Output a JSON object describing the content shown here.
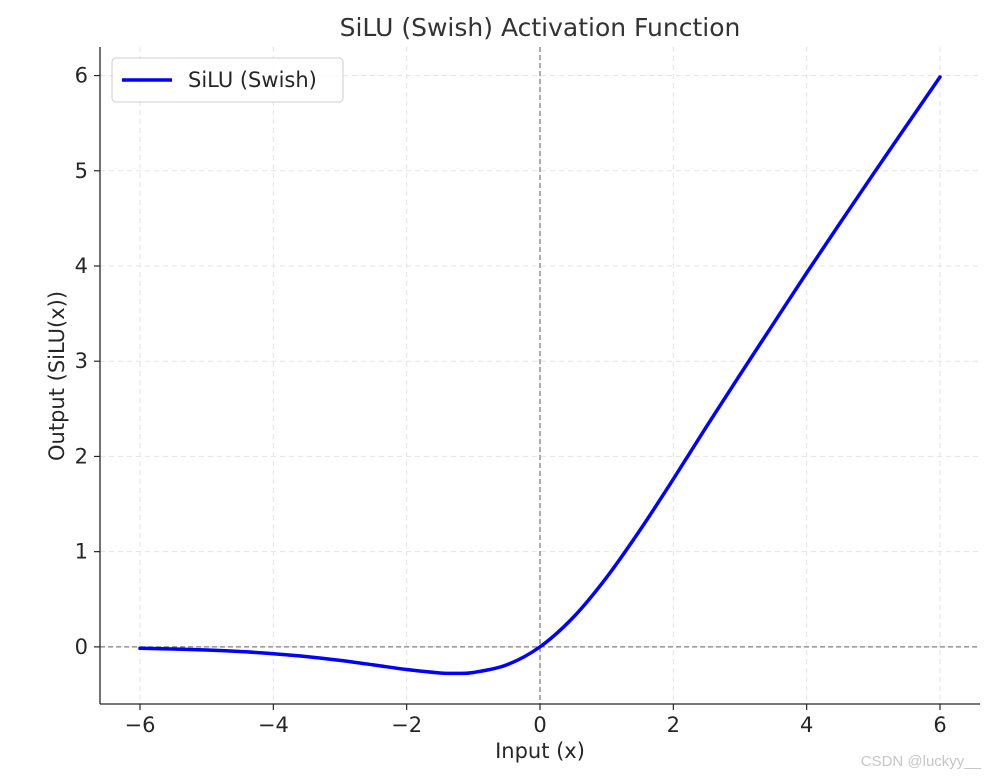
{
  "chart_data": {
    "type": "line",
    "title": "SiLU (Swish) Activation Function",
    "xlabel": "Input (x)",
    "ylabel": "Output (SiLU(x))",
    "xlim": [
      -6.6,
      6.6
    ],
    "ylim": [
      -0.6,
      6.3
    ],
    "xticks": [
      -6,
      -4,
      -2,
      0,
      2,
      4,
      6
    ],
    "xtick_labels": [
      "−6",
      "−4",
      "−2",
      "0",
      "2",
      "4",
      "6"
    ],
    "yticks": [
      0,
      1,
      2,
      3,
      4,
      5,
      6
    ],
    "ytick_labels": [
      "0",
      "1",
      "2",
      "3",
      "4",
      "5",
      "6"
    ],
    "grid": true,
    "reference_lines": {
      "x": 0,
      "y": 0
    },
    "legend_position": "top-left",
    "series": [
      {
        "name": "SiLU (Swish)",
        "color": "#0000ff",
        "x": [
          -6,
          -5.5,
          -5,
          -4.5,
          -4,
          -3.5,
          -3,
          -2.5,
          -2,
          -1.5,
          -1.25,
          -1,
          -0.5,
          0,
          0.5,
          1,
          1.5,
          2,
          2.5,
          3,
          3.5,
          4,
          4.5,
          5,
          5.5,
          6
        ],
        "y": [
          -0.015,
          -0.022,
          -0.033,
          -0.049,
          -0.072,
          -0.102,
          -0.142,
          -0.189,
          -0.238,
          -0.274,
          -0.278,
          -0.269,
          -0.189,
          0,
          0.311,
          0.731,
          1.226,
          1.762,
          2.316,
          2.858,
          3.393,
          3.928,
          4.45,
          4.967,
          5.477,
          5.985
        ]
      }
    ]
  },
  "watermark": "CSDN @luckyy__"
}
